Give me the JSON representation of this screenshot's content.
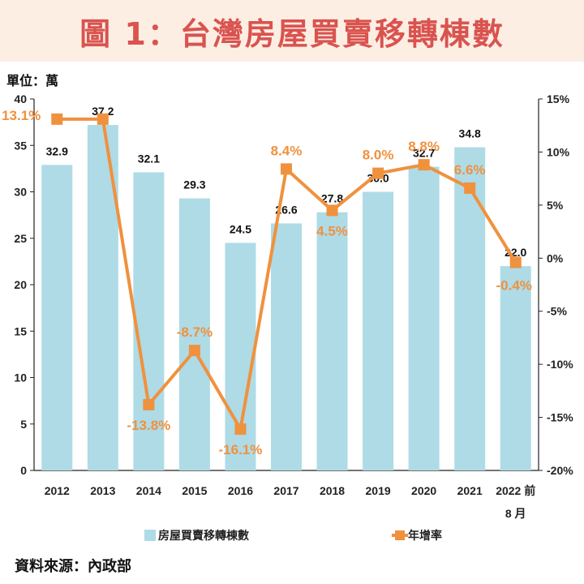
{
  "title": "圖 1：台灣房屋買賣移轉棟數",
  "unit": "單位：萬",
  "source": "資料來源：內政部",
  "colors": {
    "bar": "#aedbe6",
    "line": "#f0913e",
    "title": "#d9534f",
    "title_bg": "#fdeee4"
  },
  "chart_data": {
    "type": "bar",
    "categories": [
      "2012",
      "2013",
      "2014",
      "2015",
      "2016",
      "2017",
      "2018",
      "2019",
      "2020",
      "2021",
      "2022 前\n8 月"
    ],
    "series": [
      {
        "name": "房屋買賣移轉棟數",
        "type": "bar",
        "axis": "left",
        "values": [
          32.9,
          37.2,
          32.1,
          29.3,
          24.5,
          26.6,
          27.8,
          30.0,
          32.7,
          34.8,
          22.0
        ],
        "labels": [
          "32.9",
          "37.2",
          "32.1",
          "29.3",
          "24.5",
          "26.6",
          "27.8",
          "30.0",
          "32.7",
          "34.8",
          "22.0"
        ]
      },
      {
        "name": "年增率",
        "type": "line",
        "axis": "right",
        "values": [
          13.1,
          13.1,
          -13.8,
          -8.7,
          -16.1,
          8.4,
          4.5,
          8.0,
          8.8,
          6.6,
          -0.4
        ],
        "labels": [
          "13.1%",
          "",
          "-13.8%",
          "-8.7%",
          "-16.1%",
          "8.4%",
          "4.5%",
          "8.0%",
          "8.8%",
          "6.6%",
          "-0.4%"
        ]
      }
    ],
    "y_left": {
      "ylim": [
        0,
        40
      ],
      "ticks": [
        "0",
        "5",
        "10",
        "15",
        "20",
        "25",
        "30",
        "35",
        "40"
      ]
    },
    "y_right": {
      "ylim": [
        -20,
        15
      ],
      "ticks": [
        "-20%",
        "-15%",
        "-10%",
        "-5%",
        "0%",
        "5%",
        "10%",
        "15%"
      ]
    },
    "legend": {
      "position": "bottom",
      "entries": [
        "房屋買賣移轉棟數",
        "年增率"
      ]
    },
    "grid": false
  }
}
